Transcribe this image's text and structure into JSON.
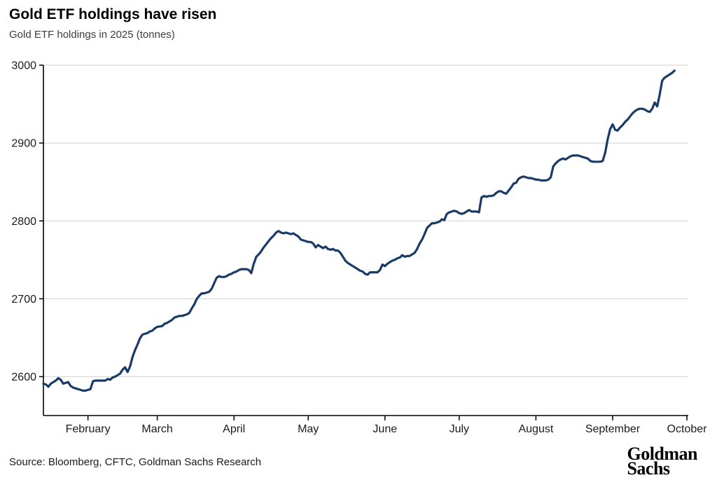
{
  "header": {
    "title": "Gold ETF holdings have risen",
    "subtitle": "Gold ETF holdings in 2025 (tonnes)"
  },
  "footer": {
    "source": "Source: Bloomberg, CFTC, Goldman Sachs Research",
    "logo": {
      "line1": "Goldman",
      "line2": "Sachs"
    }
  },
  "chart_data": {
    "type": "line",
    "title": "Gold ETF holdings have risen",
    "subtitle": "Gold ETF holdings in 2025 (tonnes)",
    "y_units": "tonnes",
    "ylim": [
      2550,
      3000
    ],
    "yticks": [
      2600,
      2700,
      2800,
      2900,
      3000
    ],
    "grid": "horizontal",
    "legend": "none",
    "x_start": "2025-01-14",
    "x_end": "2025-10-01",
    "x_tick_labels": [
      "February",
      "March",
      "April",
      "May",
      "June",
      "July",
      "August",
      "September",
      "October"
    ],
    "series": [
      {
        "name": "Gold ETF holdings (tonnes)",
        "color": "#1a3a68",
        "year": "2025",
        "points": [
          [
            "01-14",
            2591
          ],
          [
            "01-15",
            2590
          ],
          [
            "01-16",
            2587
          ],
          [
            "01-17",
            2591
          ],
          [
            "01-18",
            2593
          ],
          [
            "01-19",
            2595
          ],
          [
            "01-20",
            2598
          ],
          [
            "01-21",
            2596
          ],
          [
            "01-22",
            2591
          ],
          [
            "01-23",
            2592
          ],
          [
            "01-24",
            2593
          ],
          [
            "01-25",
            2588
          ],
          [
            "01-26",
            2586
          ],
          [
            "01-27",
            2585
          ],
          [
            "01-28",
            2584
          ],
          [
            "01-29",
            2583
          ],
          [
            "01-30",
            2582
          ],
          [
            "01-31",
            2582
          ],
          [
            "02-01",
            2583
          ],
          [
            "02-02",
            2584
          ],
          [
            "02-03",
            2594
          ],
          [
            "02-04",
            2595
          ],
          [
            "02-06",
            2595
          ],
          [
            "02-08",
            2595
          ],
          [
            "02-09",
            2597
          ],
          [
            "02-10",
            2596
          ],
          [
            "02-11",
            2599
          ],
          [
            "02-12",
            2600
          ],
          [
            "02-13",
            2602
          ],
          [
            "02-14",
            2604
          ],
          [
            "02-15",
            2609
          ],
          [
            "02-16",
            2612
          ],
          [
            "02-17",
            2606
          ],
          [
            "02-18",
            2613
          ],
          [
            "02-19",
            2625
          ],
          [
            "02-20",
            2634
          ],
          [
            "02-21",
            2641
          ],
          [
            "02-22",
            2649
          ],
          [
            "02-23",
            2654
          ],
          [
            "02-24",
            2655
          ],
          [
            "02-25",
            2656
          ],
          [
            "02-26",
            2658
          ],
          [
            "02-27",
            2659
          ],
          [
            "02-28",
            2662
          ],
          [
            "03-01",
            2664
          ],
          [
            "03-03",
            2665
          ],
          [
            "03-04",
            2668
          ],
          [
            "03-05",
            2669
          ],
          [
            "03-06",
            2671
          ],
          [
            "03-07",
            2673
          ],
          [
            "03-08",
            2676
          ],
          [
            "03-09",
            2677
          ],
          [
            "03-10",
            2678
          ],
          [
            "03-11",
            2678
          ],
          [
            "03-12",
            2679
          ],
          [
            "03-13",
            2680
          ],
          [
            "03-14",
            2682
          ],
          [
            "03-15",
            2688
          ],
          [
            "03-16",
            2693
          ],
          [
            "03-17",
            2700
          ],
          [
            "03-18",
            2704
          ],
          [
            "03-19",
            2707
          ],
          [
            "03-20",
            2707
          ],
          [
            "03-21",
            2708
          ],
          [
            "03-22",
            2709
          ],
          [
            "03-23",
            2713
          ],
          [
            "03-24",
            2720
          ],
          [
            "03-25",
            2727
          ],
          [
            "03-26",
            2729
          ],
          [
            "03-27",
            2728
          ],
          [
            "03-28",
            2728
          ],
          [
            "03-29",
            2729
          ],
          [
            "03-30",
            2731
          ],
          [
            "03-31",
            2732
          ],
          [
            "04-01",
            2734
          ],
          [
            "04-02",
            2735
          ],
          [
            "04-03",
            2737
          ],
          [
            "04-04",
            2738
          ],
          [
            "04-06",
            2738
          ],
          [
            "04-07",
            2737
          ],
          [
            "04-08",
            2733
          ],
          [
            "04-09",
            2745
          ],
          [
            "04-10",
            2754
          ],
          [
            "04-11",
            2757
          ],
          [
            "04-12",
            2761
          ],
          [
            "04-13",
            2766
          ],
          [
            "04-14",
            2770
          ],
          [
            "04-15",
            2774
          ],
          [
            "04-16",
            2778
          ],
          [
            "04-17",
            2781
          ],
          [
            "04-18",
            2785
          ],
          [
            "04-19",
            2787
          ],
          [
            "04-20",
            2785
          ],
          [
            "04-21",
            2784
          ],
          [
            "04-22",
            2785
          ],
          [
            "04-23",
            2784
          ],
          [
            "04-24",
            2783
          ],
          [
            "04-25",
            2784
          ],
          [
            "04-26",
            2782
          ],
          [
            "04-27",
            2780
          ],
          [
            "04-28",
            2776
          ],
          [
            "04-29",
            2775
          ],
          [
            "04-30",
            2774
          ],
          [
            "05-01",
            2773
          ],
          [
            "05-02",
            2773
          ],
          [
            "05-03",
            2771
          ],
          [
            "05-04",
            2766
          ],
          [
            "05-05",
            2769
          ],
          [
            "05-06",
            2767
          ],
          [
            "05-07",
            2765
          ],
          [
            "05-08",
            2767
          ],
          [
            "05-09",
            2764
          ],
          [
            "05-10",
            2763
          ],
          [
            "05-11",
            2764
          ],
          [
            "05-12",
            2762
          ],
          [
            "05-13",
            2762
          ],
          [
            "05-14",
            2759
          ],
          [
            "05-15",
            2754
          ],
          [
            "05-16",
            2749
          ],
          [
            "05-17",
            2746
          ],
          [
            "05-18",
            2744
          ],
          [
            "05-19",
            2742
          ],
          [
            "05-20",
            2740
          ],
          [
            "05-21",
            2738
          ],
          [
            "05-22",
            2736
          ],
          [
            "05-23",
            2735
          ],
          [
            "05-24",
            2732
          ],
          [
            "05-25",
            2731
          ],
          [
            "05-26",
            2734
          ],
          [
            "05-28",
            2734
          ],
          [
            "05-29",
            2734
          ],
          [
            "05-30",
            2737
          ],
          [
            "05-31",
            2744
          ],
          [
            "06-01",
            2742
          ],
          [
            "06-02",
            2745
          ],
          [
            "06-03",
            2747
          ],
          [
            "06-04",
            2749
          ],
          [
            "06-05",
            2750
          ],
          [
            "06-06",
            2752
          ],
          [
            "06-07",
            2753
          ],
          [
            "06-08",
            2756
          ],
          [
            "06-09",
            2754
          ],
          [
            "06-10",
            2755
          ],
          [
            "06-11",
            2755
          ],
          [
            "06-12",
            2757
          ],
          [
            "06-13",
            2759
          ],
          [
            "06-14",
            2764
          ],
          [
            "06-15",
            2771
          ],
          [
            "06-16",
            2776
          ],
          [
            "06-17",
            2783
          ],
          [
            "06-18",
            2791
          ],
          [
            "06-19",
            2794
          ],
          [
            "06-20",
            2797
          ],
          [
            "06-21",
            2797
          ],
          [
            "06-22",
            2798
          ],
          [
            "06-23",
            2799
          ],
          [
            "06-24",
            2802
          ],
          [
            "06-25",
            2801
          ],
          [
            "06-26",
            2809
          ],
          [
            "06-27",
            2811
          ],
          [
            "06-28",
            2812
          ],
          [
            "06-29",
            2813
          ],
          [
            "06-30",
            2812
          ],
          [
            "07-01",
            2810
          ],
          [
            "07-02",
            2809
          ],
          [
            "07-03",
            2810
          ],
          [
            "07-04",
            2812
          ],
          [
            "07-05",
            2814
          ],
          [
            "07-06",
            2812
          ],
          [
            "07-08",
            2812
          ],
          [
            "07-09",
            2811
          ],
          [
            "07-10",
            2830
          ],
          [
            "07-11",
            2832
          ],
          [
            "07-12",
            2831
          ],
          [
            "07-13",
            2832
          ],
          [
            "07-14",
            2832
          ],
          [
            "07-15",
            2833
          ],
          [
            "07-16",
            2836
          ],
          [
            "07-17",
            2838
          ],
          [
            "07-18",
            2838
          ],
          [
            "07-19",
            2836
          ],
          [
            "07-20",
            2835
          ],
          [
            "07-21",
            2839
          ],
          [
            "07-22",
            2843
          ],
          [
            "07-23",
            2848
          ],
          [
            "07-24",
            2849
          ],
          [
            "07-25",
            2854
          ],
          [
            "07-26",
            2856
          ],
          [
            "07-27",
            2857
          ],
          [
            "07-28",
            2856
          ],
          [
            "07-29",
            2855
          ],
          [
            "07-30",
            2855
          ],
          [
            "07-31",
            2854
          ],
          [
            "08-01",
            2853
          ],
          [
            "08-02",
            2853
          ],
          [
            "08-03",
            2852
          ],
          [
            "08-04",
            2852
          ],
          [
            "08-05",
            2852
          ],
          [
            "08-06",
            2853
          ],
          [
            "08-07",
            2856
          ],
          [
            "08-08",
            2870
          ],
          [
            "08-09",
            2874
          ],
          [
            "08-10",
            2877
          ],
          [
            "08-11",
            2879
          ],
          [
            "08-12",
            2880
          ],
          [
            "08-13",
            2879
          ],
          [
            "08-14",
            2881
          ],
          [
            "08-15",
            2883
          ],
          [
            "08-16",
            2884
          ],
          [
            "08-18",
            2884
          ],
          [
            "08-19",
            2883
          ],
          [
            "08-20",
            2882
          ],
          [
            "08-21",
            2881
          ],
          [
            "08-22",
            2880
          ],
          [
            "08-23",
            2877
          ],
          [
            "08-24",
            2876
          ],
          [
            "08-26",
            2876
          ],
          [
            "08-27",
            2876
          ],
          [
            "08-28",
            2877
          ],
          [
            "08-29",
            2888
          ],
          [
            "08-30",
            2905
          ],
          [
            "08-31",
            2918
          ],
          [
            "09-01",
            2924
          ],
          [
            "09-02",
            2917
          ],
          [
            "09-03",
            2916
          ],
          [
            "09-04",
            2920
          ],
          [
            "09-05",
            2923
          ],
          [
            "09-06",
            2927
          ],
          [
            "09-07",
            2930
          ],
          [
            "09-08",
            2934
          ],
          [
            "09-09",
            2938
          ],
          [
            "09-10",
            2941
          ],
          [
            "09-11",
            2943
          ],
          [
            "09-12",
            2944
          ],
          [
            "09-13",
            2944
          ],
          [
            "09-14",
            2943
          ],
          [
            "09-15",
            2941
          ],
          [
            "09-16",
            2940
          ],
          [
            "09-17",
            2944
          ],
          [
            "09-18",
            2952
          ],
          [
            "09-19",
            2947
          ],
          [
            "09-20",
            2962
          ],
          [
            "09-21",
            2980
          ],
          [
            "09-22",
            2984
          ],
          [
            "09-23",
            2986
          ],
          [
            "09-24",
            2988
          ],
          [
            "09-25",
            2990
          ],
          [
            "09-26",
            2993
          ]
        ]
      }
    ]
  }
}
